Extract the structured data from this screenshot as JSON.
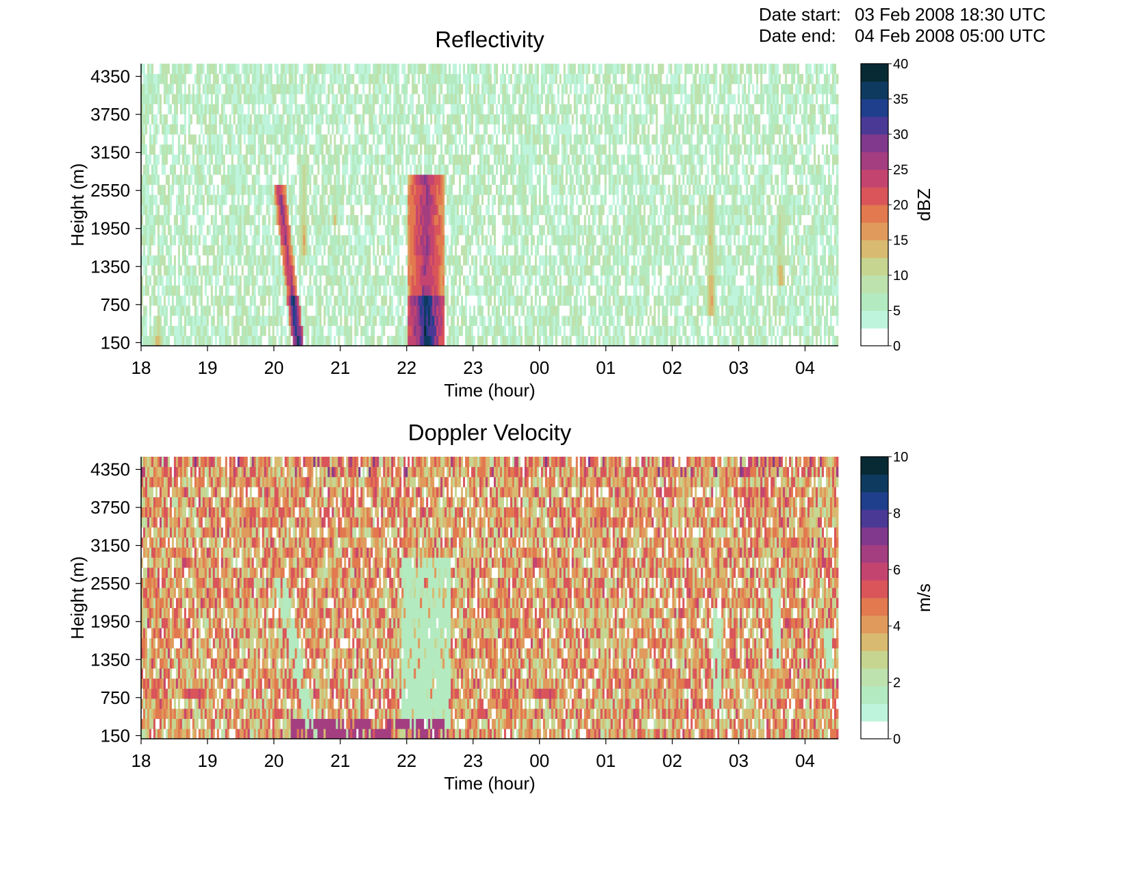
{
  "header": {
    "start_label": "Date start:",
    "start_value": "03 Feb 2008 18:30 UTC",
    "end_label": "Date end:",
    "end_value": "04 Feb 2008 05:00 UTC"
  },
  "chart_data": [
    {
      "type": "heatmap",
      "title": "Reflectivity",
      "xlabel": "Time (hour)",
      "ylabel": "Height (m)",
      "x_ticks": [
        "18",
        "19",
        "20",
        "21",
        "22",
        "23",
        "00",
        "01",
        "02",
        "03",
        "04"
      ],
      "x_range": [
        "18:00",
        "04:30"
      ],
      "y_ticks": [
        150,
        750,
        1350,
        1950,
        2550,
        3150,
        3750,
        4350
      ],
      "y_range": [
        100,
        4550
      ],
      "colorbar": {
        "label": "dBZ",
        "range": [
          0,
          40
        ],
        "ticks": [
          0,
          5,
          10,
          15,
          20,
          25,
          30,
          35,
          40
        ]
      },
      "background_level": "0–10 dBZ noise throughout",
      "features": [
        {
          "description": "near-surface echo",
          "time": "18:15",
          "height_range": [
            150,
            500
          ],
          "peak": 15
        },
        {
          "description": "slanted precipitation band",
          "time_top": "20:05",
          "time_bottom": "20:22",
          "height_range": [
            150,
            2600
          ],
          "peak": 38
        },
        {
          "description": "thin streak",
          "time": "20:27",
          "height_range": [
            1600,
            3000
          ],
          "peak": 15
        },
        {
          "description": "weak streak",
          "time": "20:55",
          "height_range": [
            2000,
            2700
          ],
          "peak": 12
        },
        {
          "description": "broad precipitation band",
          "time_range": [
            "22:00",
            "22:35"
          ],
          "height_range": [
            150,
            2800
          ],
          "peak": 38
        },
        {
          "description": "weak streak",
          "time": "02:35",
          "height_range": [
            600,
            2500
          ],
          "peak": 17
        },
        {
          "description": "weak streak",
          "time": "03:38",
          "height_range": [
            1000,
            2400
          ],
          "peak": 15
        }
      ]
    },
    {
      "type": "heatmap",
      "title": "Doppler Velocity",
      "xlabel": "Time (hour)",
      "ylabel": "Height (m)",
      "x_ticks": [
        "18",
        "19",
        "20",
        "21",
        "22",
        "23",
        "00",
        "01",
        "02",
        "03",
        "04"
      ],
      "x_range": [
        "18:00",
        "04:30"
      ],
      "y_ticks": [
        150,
        750,
        1350,
        1950,
        2550,
        3150,
        3750,
        4350
      ],
      "y_range": [
        100,
        4550
      ],
      "colorbar": {
        "label": "m/s",
        "range": [
          0,
          10
        ],
        "ticks": [
          0,
          2,
          4,
          6,
          8,
          10
        ]
      },
      "background_level": "2–5 m/s noise throughout",
      "features": [
        {
          "description": "low-velocity band",
          "time_top": "20:05",
          "time_bottom": "20:35",
          "height_range": [
            150,
            2700
          ],
          "value": 1
        },
        {
          "description": "low-velocity region",
          "time_range": [
            "21:55",
            "22:40"
          ],
          "height_range": [
            300,
            2900
          ],
          "value": 1
        },
        {
          "description": "low-velocity patch",
          "time": "02:40",
          "height_range": [
            600,
            2200
          ],
          "value": 1
        },
        {
          "description": "low-velocity patch",
          "time": "03:35",
          "height_range": [
            1200,
            2500
          ],
          "value": 1
        },
        {
          "description": "low-velocity patch",
          "time": "04:20",
          "height_range": [
            1200,
            1900
          ],
          "value": 1
        },
        {
          "description": "high-velocity streaks",
          "time_range": [
            "20:15",
            "22:35"
          ],
          "height_range": [
            150,
            400
          ],
          "value": 6
        }
      ]
    }
  ]
}
